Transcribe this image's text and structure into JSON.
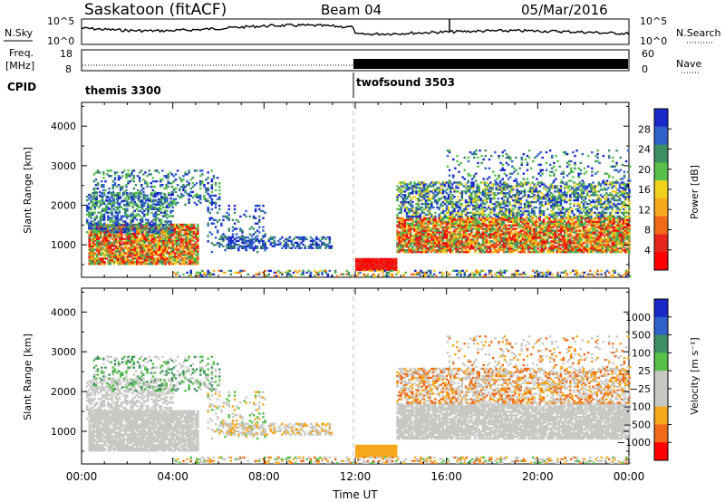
{
  "header": {
    "station": "Saskatoon (fitACF)",
    "beam": "Beam 04",
    "date": "05/Mar/2016"
  },
  "top_panels": {
    "nsky_label": "N.Sky",
    "nsearch_label": "N.Search",
    "nsky_ticks": [
      "10^5",
      "10^0"
    ],
    "nsky_right_ticks": [
      "10^5",
      "10^0"
    ],
    "freq_label_1": "Freq.",
    "freq_label_2": "[MHz]",
    "freq_ticks": [
      "18",
      "8"
    ],
    "nave_label": "Nave",
    "nave_ticks": [
      "60",
      "0"
    ],
    "cpid_label": "CPID",
    "cpid_1": "themis 3300",
    "cpid_2": "twofsound 3503"
  },
  "colors": {
    "power": [
      "#1b28c8",
      "#2f61c9",
      "#3d8f63",
      "#58c04a",
      "#f0d21d",
      "#f7a71c",
      "#f06a1a",
      "#e7261c",
      "#ff0000"
    ],
    "velocity": [
      "#1b28c8",
      "#2f61c9",
      "#3d8f63",
      "#58c04a",
      "#c8c8c4",
      "#c8c8c4",
      "#f7a71c",
      "#f06a1a",
      "#ff0000"
    ]
  },
  "chart_data": [
    {
      "type": "heatmap",
      "title": "",
      "xlabel": "",
      "ylabel": "Slant Range [km]",
      "xlim_hours": [
        0,
        24
      ],
      "ylim_km": [
        180,
        4600
      ],
      "yticks": [
        "4000",
        "3000",
        "2000",
        "1000"
      ],
      "colorbar": {
        "label": "Power [dB]",
        "ticks": [
          "28",
          "24",
          "20",
          "16",
          "12",
          "8",
          "4"
        ],
        "range": [
          0,
          30
        ]
      }
    },
    {
      "type": "heatmap",
      "title": "",
      "xlabel": "Time UT",
      "ylabel": "Slant Range [km]",
      "xlim_hours": [
        0,
        24
      ],
      "ylim_km": [
        180,
        4600
      ],
      "yticks": [
        "4000",
        "3000",
        "2000",
        "1000"
      ],
      "xticks": [
        "00:00",
        "04:00",
        "08:00",
        "12:00",
        "16:00",
        "20:00",
        "00:00"
      ],
      "colorbar": {
        "label": "Velocity [m s⁻¹]",
        "ticks": [
          "1000",
          "500",
          "100",
          "25",
          "−25",
          "−100",
          "−500",
          "−1000"
        ],
        "range": [
          -1000,
          1000
        ]
      }
    }
  ]
}
